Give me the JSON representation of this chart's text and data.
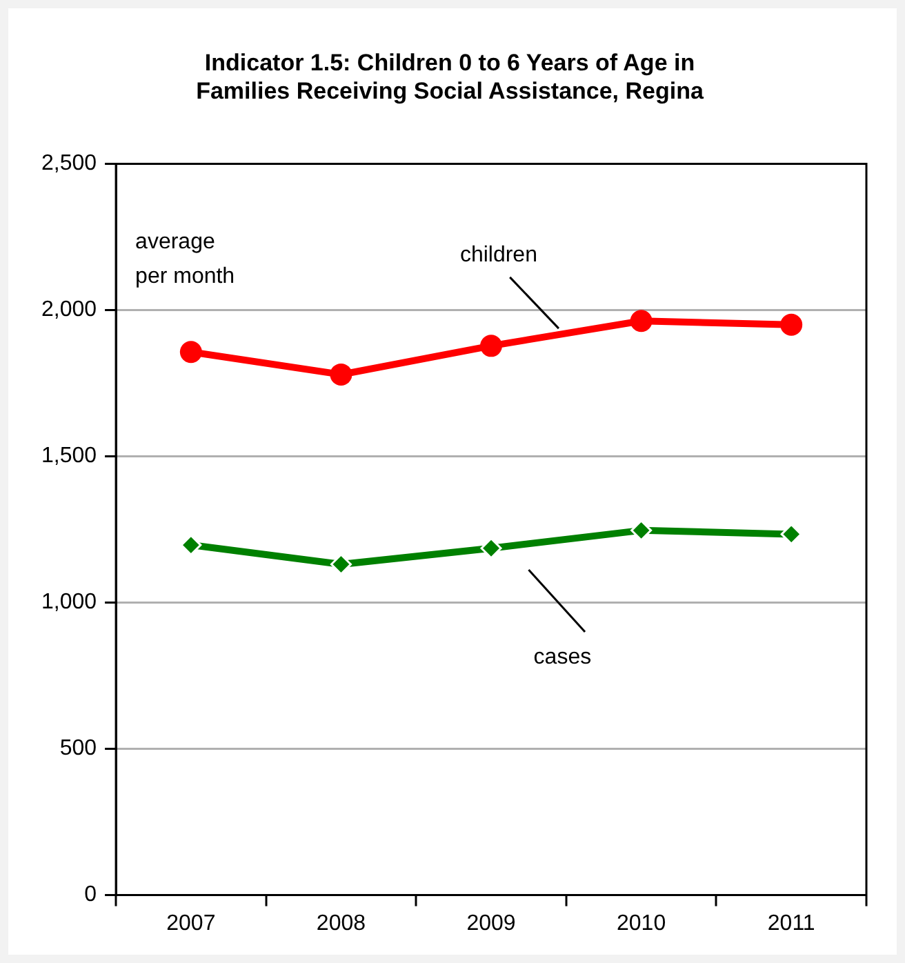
{
  "chart_data": {
    "type": "line",
    "title": "Indicator 1.5: Children 0 to 6 Years of Age in Families Receiving Social Assistance, Regina",
    "categories": [
      "2007",
      "2008",
      "2009",
      "2010",
      "2011"
    ],
    "series": [
      {
        "name": "children",
        "color": "#ff0000",
        "marker": "circle",
        "values": [
          1857,
          1780,
          1878,
          1963,
          1950
        ]
      },
      {
        "name": "cases",
        "color": "#008000",
        "marker": "diamond",
        "values": [
          1197,
          1131,
          1186,
          1247,
          1234
        ]
      }
    ],
    "ylim": [
      0,
      2500
    ],
    "yticks": [
      {
        "value": 0,
        "label": "0"
      },
      {
        "value": 500,
        "label": "500"
      },
      {
        "value": 1000,
        "label": "1,000"
      },
      {
        "value": 1500,
        "label": "1,500"
      },
      {
        "value": 2000,
        "label": "2,000"
      },
      {
        "value": 2500,
        "label": "2,500"
      }
    ],
    "grid": "y",
    "legend": false,
    "annotations": [
      "average per month"
    ]
  }
}
